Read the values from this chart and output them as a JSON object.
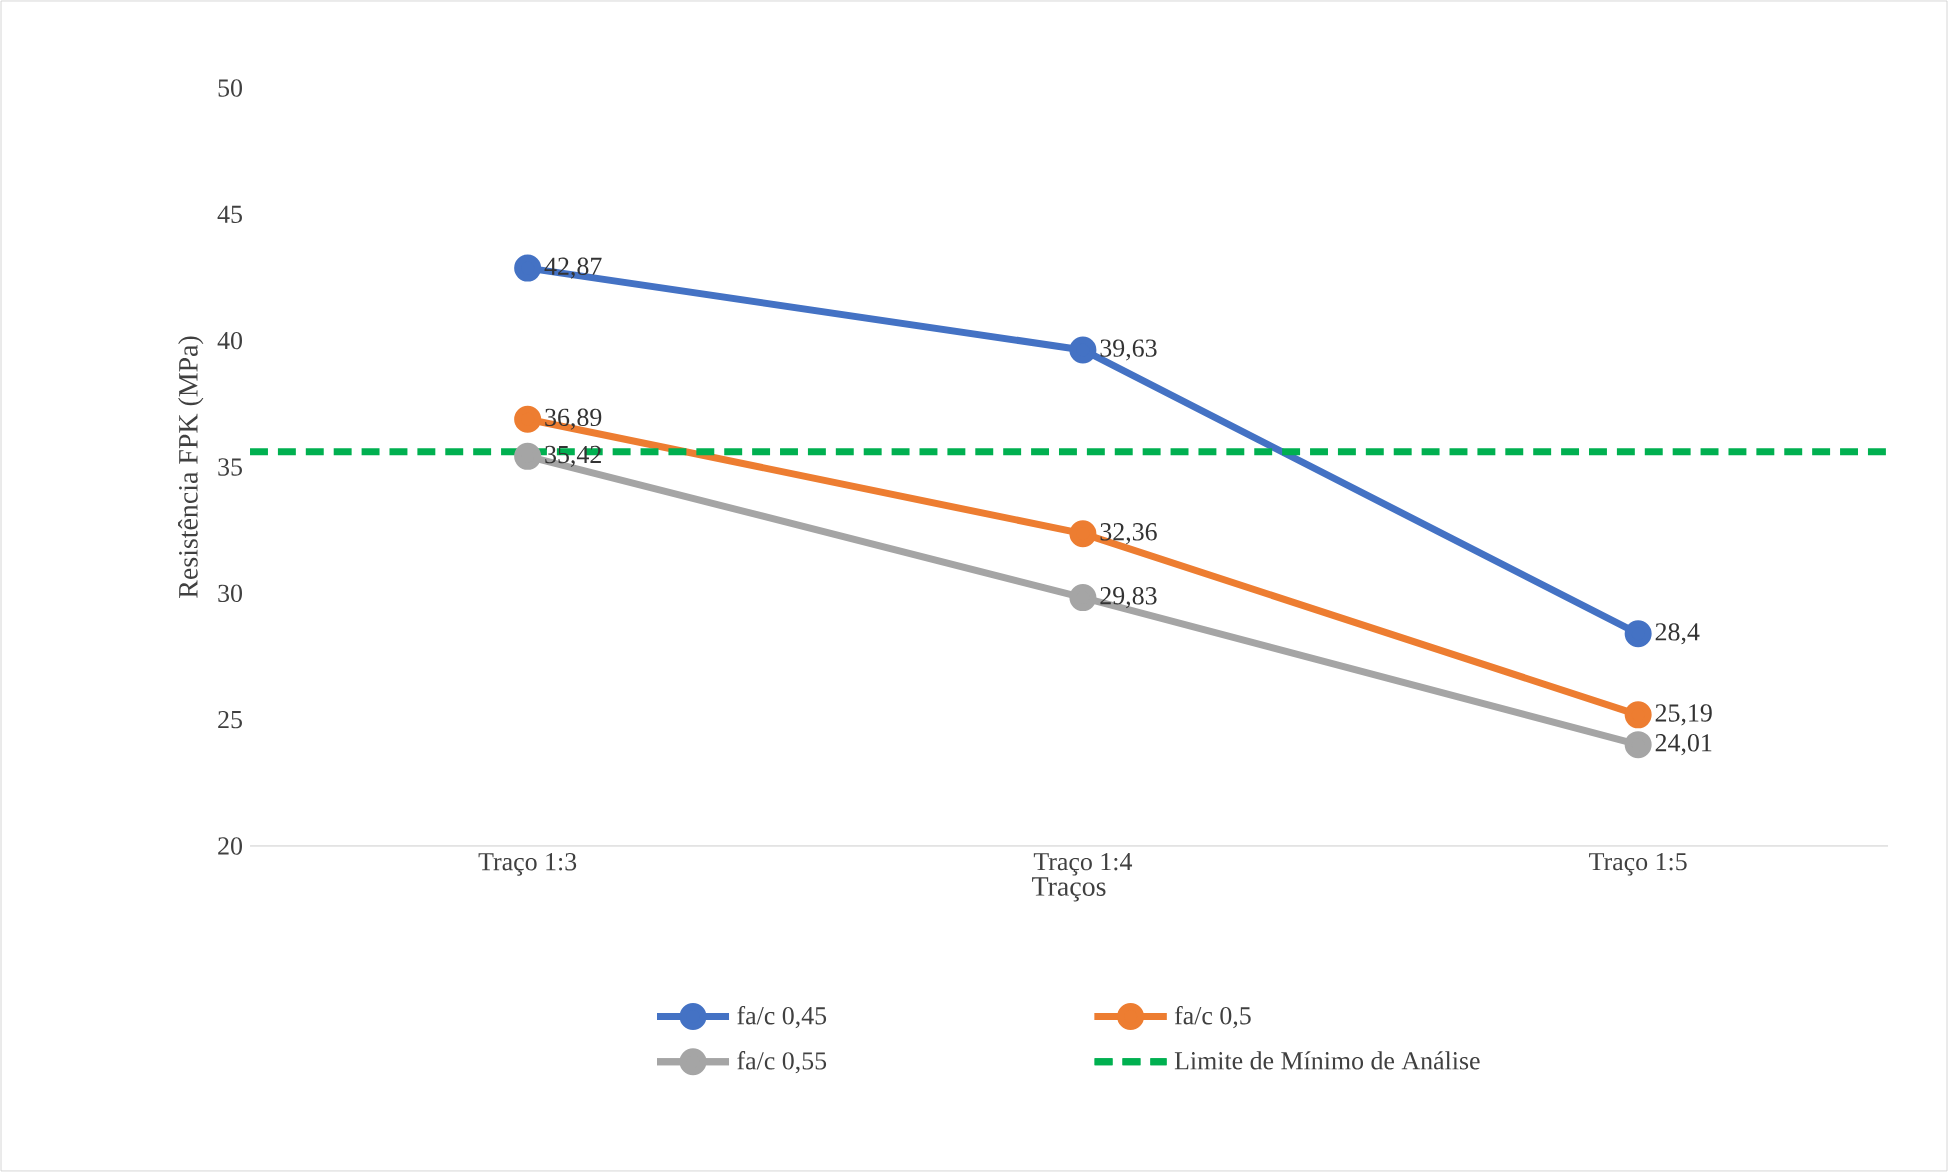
{
  "chart_data": {
    "type": "line",
    "xlabel": "Traços",
    "ylabel": "Resistência FPK (MPa)",
    "categories": [
      "Traço 1:3",
      "Traço 1:4",
      "Traço 1:5"
    ],
    "series": [
      {
        "name": "fa/c 0,45",
        "color": "#4472c4",
        "values": [
          42.87,
          39.63,
          28.4
        ],
        "value_labels": [
          "42,87",
          "39,63",
          "28,4"
        ]
      },
      {
        "name": "fa/c 0,5",
        "color": "#ed7d31",
        "values": [
          36.89,
          32.36,
          25.19
        ],
        "value_labels": [
          "36,89",
          "32,36",
          "25,19"
        ]
      },
      {
        "name": "fa/c 0,55",
        "color": "#a5a5a5",
        "values": [
          35.42,
          29.83,
          24.01
        ],
        "value_labels": [
          "35,42",
          "29,83",
          "24,01"
        ]
      }
    ],
    "ref_lines": [
      {
        "axis": "y",
        "value": 35.6,
        "label": "Limite de Mínimo de Análise",
        "color": "#00b050",
        "line_style": "dashed"
      }
    ],
    "ylim": [
      20,
      50
    ],
    "yticks": [
      20,
      25,
      30,
      35,
      40,
      45,
      50
    ],
    "marker": "circle",
    "line_style": "solid",
    "legend": "bottom"
  }
}
